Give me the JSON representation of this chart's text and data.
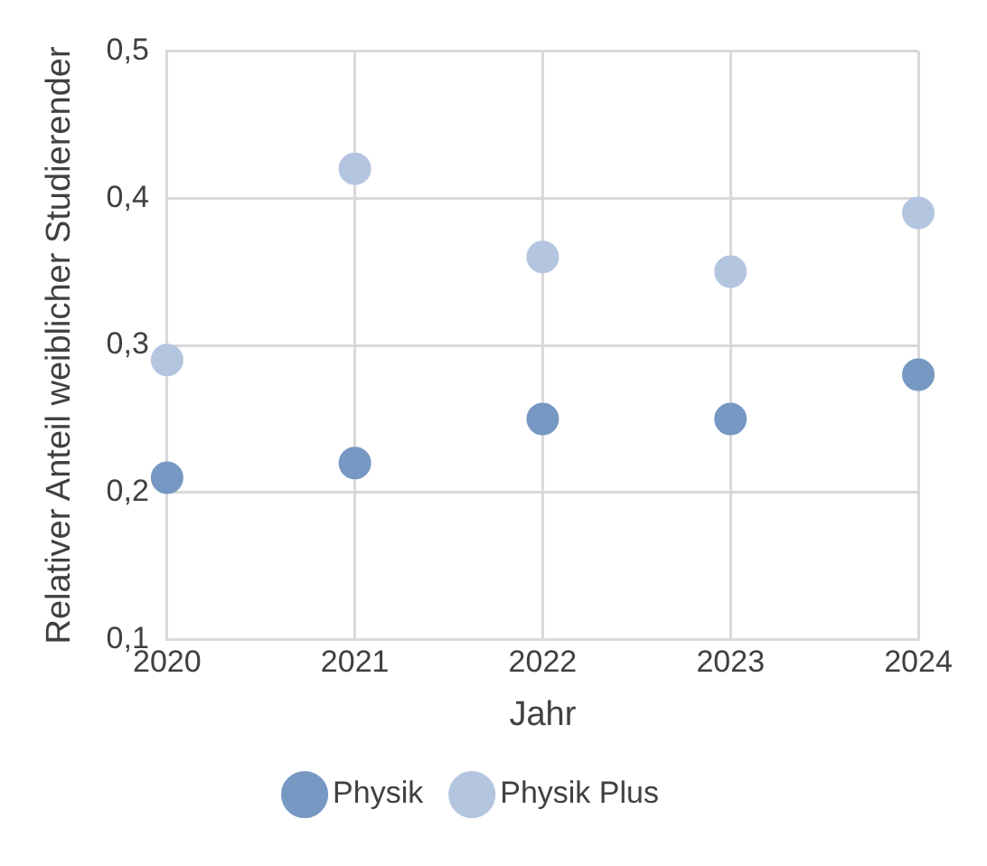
{
  "chart_data": {
    "type": "scatter",
    "xlabel": "Jahr",
    "ylabel": "Relativer Anteil weiblicher Studierender",
    "x": [
      2020,
      2021,
      2022,
      2023,
      2024
    ],
    "series": [
      {
        "name": "Physik",
        "color": "#7698c3",
        "values": [
          0.21,
          0.22,
          0.25,
          0.25,
          0.28
        ]
      },
      {
        "name": "Physik Plus",
        "color": "#b4c5e0",
        "values": [
          0.29,
          0.42,
          0.36,
          0.35,
          0.39
        ]
      }
    ],
    "xlim": [
      2020,
      2024
    ],
    "xticks": [
      2020,
      2021,
      2022,
      2023,
      2024
    ],
    "ylim": [
      0.1,
      0.5
    ],
    "yticks": [
      {
        "value": 0.1,
        "label": "0,1"
      },
      {
        "value": 0.2,
        "label": "0,2"
      },
      {
        "value": 0.3,
        "label": "0,3"
      },
      {
        "value": 0.4,
        "label": "0,4"
      },
      {
        "value": 0.5,
        "label": "0,5"
      }
    ],
    "grid": true,
    "legend": "bottom",
    "marker": "circle"
  }
}
